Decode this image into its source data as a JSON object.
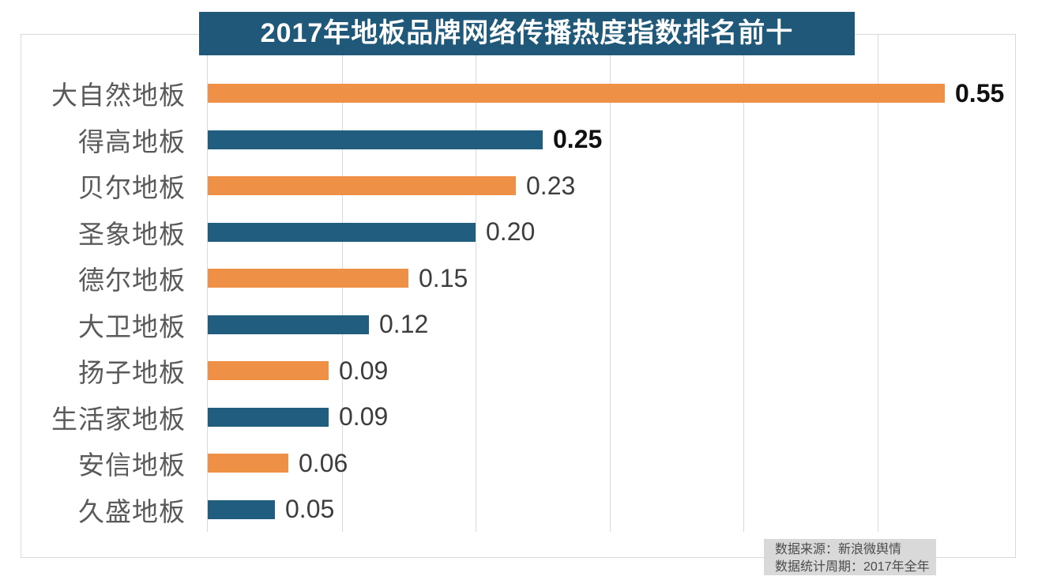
{
  "chart_data": {
    "type": "bar",
    "orientation": "horizontal",
    "title": "2017年地板品牌网络传播热度指数排名前十",
    "categories": [
      "大自然地板",
      "得高地板",
      "贝尔地板",
      "圣象地板",
      "德尔地板",
      "大卫地板",
      "扬子地板",
      "生活家地板",
      "安信地板",
      "久盛地板"
    ],
    "values": [
      0.55,
      0.25,
      0.23,
      0.2,
      0.15,
      0.12,
      0.09,
      0.09,
      0.06,
      0.05
    ],
    "value_labels": [
      "0.55",
      "0.25",
      "0.23",
      "0.20",
      "0.15",
      "0.12",
      "0.09",
      "0.09",
      "0.06",
      "0.05"
    ],
    "xlabel": "",
    "ylabel": "",
    "xlim": [
      0,
      0.6
    ],
    "gridline_interval": 0.1,
    "grid": "vertical-gridlines-only",
    "legend": "none",
    "axis_tick_labels": "hidden",
    "bar_palette": {
      "odd_rows": "#EE9045",
      "even_rows": "#205D7E"
    },
    "emphasized_value_label_indices": [
      0,
      1
    ]
  },
  "title_bar": {
    "bg_color": "#1F5878",
    "text_color": "#FFFFFF"
  },
  "source": {
    "line1": "数据来源：新浪微舆情",
    "line2": "数据统计周期：2017年全年",
    "bg_color": "#D9D9D9"
  },
  "style": {
    "gridline_color": "#D9D9D9",
    "plot_border_color": "#D9D9D9",
    "category_label_color": "#5A5A5A",
    "value_label_color": "#3D3D3D",
    "value_label_emphasis_color": "#101010"
  }
}
